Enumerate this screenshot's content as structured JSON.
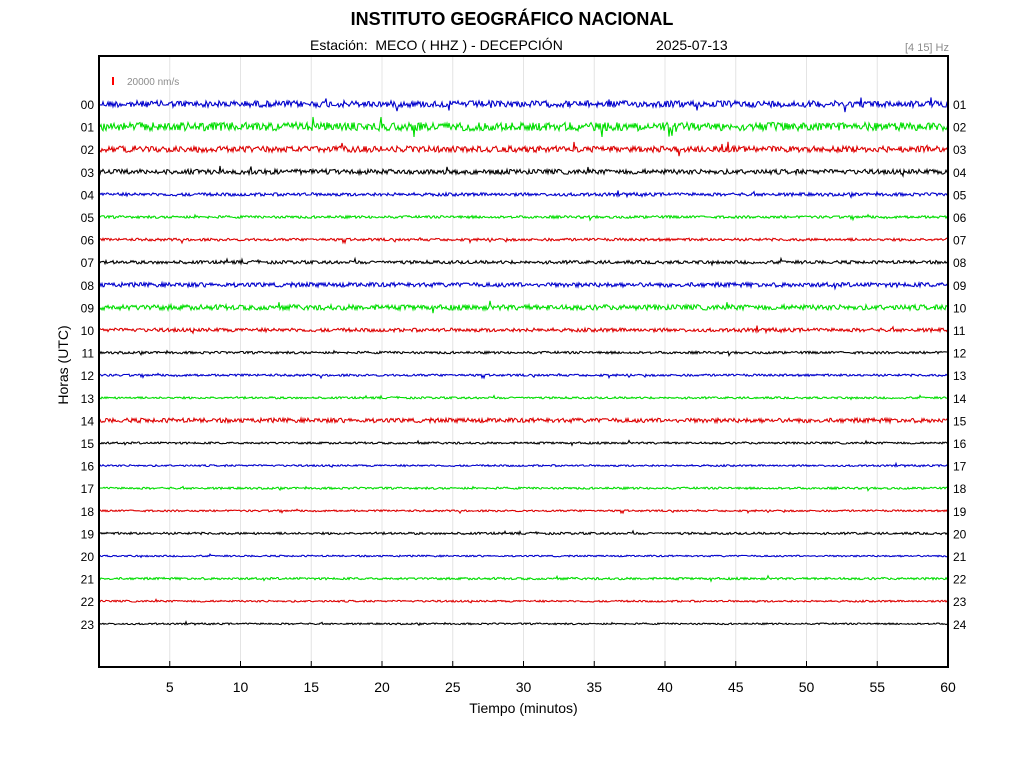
{
  "header": {
    "title": "INSTITUTO GEOGRÁFICO NACIONAL",
    "station": "Estación:  MECO ( HHZ ) - DECEPCIÓN",
    "date": "2025-07-13",
    "filter": "[4 15] Hz"
  },
  "chart_data": {
    "type": "line",
    "title": "INSTITUTO GEOGRÁFICO NACIONAL",
    "xlabel": "Tiempo (minutos)",
    "ylabel": "Horas (UTC)",
    "xlim": [
      0,
      60
    ],
    "x_ticks": [
      5,
      10,
      15,
      20,
      25,
      30,
      35,
      40,
      45,
      50,
      55,
      60
    ],
    "x_tick_labels": [
      "5",
      "10",
      "15",
      "20",
      "25",
      "30",
      "35",
      "40",
      "45",
      "50",
      "55",
      "60"
    ],
    "grid": true,
    "scale_bar": {
      "label": "20000 nm/s",
      "color": "#ff0000"
    },
    "colors": [
      "#0000cc",
      "#00dd00",
      "#dd0000",
      "#000000"
    ],
    "series": [
      {
        "left_label": "00",
        "right_label": "01",
        "amplitude": 3.2
      },
      {
        "left_label": "01",
        "right_label": "02",
        "amplitude": 4.2
      },
      {
        "left_label": "02",
        "right_label": "03",
        "amplitude": 3.0
      },
      {
        "left_label": "03",
        "right_label": "04",
        "amplitude": 2.4
      },
      {
        "left_label": "04",
        "right_label": "05",
        "amplitude": 1.6
      },
      {
        "left_label": "05",
        "right_label": "06",
        "amplitude": 1.3
      },
      {
        "left_label": "06",
        "right_label": "07",
        "amplitude": 1.3
      },
      {
        "left_label": "07",
        "right_label": "08",
        "amplitude": 1.6
      },
      {
        "left_label": "08",
        "right_label": "09",
        "amplitude": 2.2
      },
      {
        "left_label": "09",
        "right_label": "10",
        "amplitude": 2.6
      },
      {
        "left_label": "10",
        "right_label": "11",
        "amplitude": 1.8
      },
      {
        "left_label": "11",
        "right_label": "12",
        "amplitude": 1.2
      },
      {
        "left_label": "12",
        "right_label": "13",
        "amplitude": 1.1
      },
      {
        "left_label": "13",
        "right_label": "14",
        "amplitude": 1.0
      },
      {
        "left_label": "14",
        "right_label": "15",
        "amplitude": 2.2
      },
      {
        "left_label": "15",
        "right_label": "16",
        "amplitude": 1.0
      },
      {
        "left_label": "16",
        "right_label": "17",
        "amplitude": 0.9
      },
      {
        "left_label": "17",
        "right_label": "18",
        "amplitude": 1.0
      },
      {
        "left_label": "18",
        "right_label": "19",
        "amplitude": 0.9
      },
      {
        "left_label": "19",
        "right_label": "20",
        "amplitude": 1.1
      },
      {
        "left_label": "20",
        "right_label": "21",
        "amplitude": 0.8
      },
      {
        "left_label": "21",
        "right_label": "22",
        "amplitude": 1.1
      },
      {
        "left_label": "22",
        "right_label": "23",
        "amplitude": 0.9
      },
      {
        "left_label": "23",
        "right_label": "24",
        "amplitude": 0.8
      }
    ]
  }
}
